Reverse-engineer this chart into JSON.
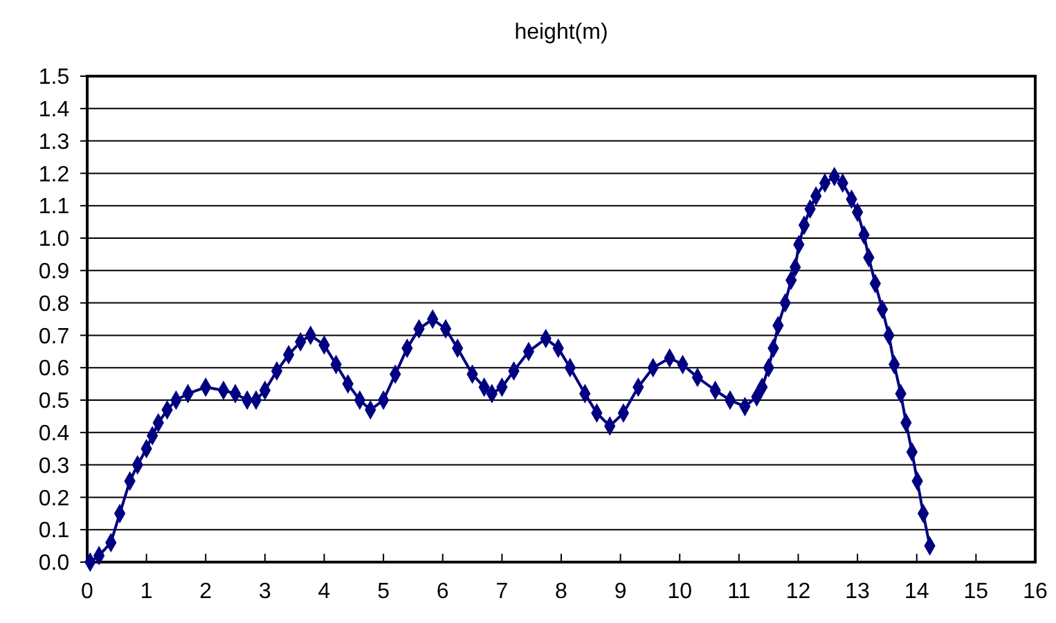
{
  "chart_data": {
    "type": "line",
    "title": "height(m)",
    "xlim": [
      0,
      16
    ],
    "xticks": [
      0,
      1,
      2,
      3,
      4,
      5,
      6,
      7,
      8,
      9,
      10,
      11,
      12,
      13,
      14,
      15,
      16
    ],
    "ylim": [
      0,
      1.5
    ],
    "yticks": [
      {
        "value": 0,
        "label": "0.0"
      },
      {
        "value": 0.1,
        "label": "0.1"
      },
      {
        "value": 0.2,
        "label": "0.2"
      },
      {
        "value": 0.3,
        "label": "0.3"
      },
      {
        "value": 0.4,
        "label": "0.4"
      },
      {
        "value": 0.5,
        "label": "0.5"
      },
      {
        "value": 0.6,
        "label": "0.6"
      },
      {
        "value": 0.7,
        "label": "0.7"
      },
      {
        "value": 0.8,
        "label": "0.8"
      },
      {
        "value": 0.9,
        "label": "0.9"
      },
      {
        "value": 1.0,
        "label": "1.0"
      },
      {
        "value": 1.1,
        "label": "1.1"
      },
      {
        "value": 1.2,
        "label": "1.2"
      },
      {
        "value": 1.3,
        "label": "1.3"
      },
      {
        "value": 1.4,
        "label": "1.4"
      },
      {
        "value": 1.5,
        "label": "1.5"
      }
    ],
    "grid": "y",
    "marker": "diamond",
    "line_style": "solid",
    "x": [
      0.05,
      0.2,
      0.4,
      0.55,
      0.72,
      0.85,
      1.0,
      1.1,
      1.2,
      1.35,
      1.5,
      1.7,
      2.0,
      2.3,
      2.5,
      2.7,
      2.85,
      3.0,
      3.2,
      3.4,
      3.6,
      3.77,
      4.0,
      4.2,
      4.4,
      4.6,
      4.78,
      5.0,
      5.2,
      5.4,
      5.6,
      5.83,
      6.05,
      6.25,
      6.5,
      6.7,
      6.83,
      7.0,
      7.2,
      7.45,
      7.74,
      7.95,
      8.15,
      8.4,
      8.6,
      8.82,
      9.05,
      9.3,
      9.55,
      9.83,
      10.05,
      10.3,
      10.6,
      10.85,
      11.1,
      11.3,
      11.39,
      11.5,
      11.58,
      11.66,
      11.78,
      11.88,
      11.95,
      12.01,
      12.1,
      12.2,
      12.3,
      12.45,
      12.61,
      12.75,
      12.9,
      13.0,
      13.11,
      13.19,
      13.3,
      13.42,
      13.53,
      13.62,
      13.73,
      13.82,
      13.92,
      14.01,
      14.11,
      14.22
    ],
    "series": [
      {
        "color": "#000080",
        "values": [
          0.0,
          0.02,
          0.06,
          0.15,
          0.25,
          0.3,
          0.35,
          0.39,
          0.43,
          0.47,
          0.5,
          0.52,
          0.54,
          0.53,
          0.52,
          0.5,
          0.5,
          0.53,
          0.59,
          0.64,
          0.68,
          0.7,
          0.67,
          0.61,
          0.55,
          0.5,
          0.47,
          0.5,
          0.58,
          0.66,
          0.72,
          0.75,
          0.72,
          0.66,
          0.58,
          0.54,
          0.52,
          0.54,
          0.59,
          0.65,
          0.69,
          0.66,
          0.6,
          0.52,
          0.46,
          0.42,
          0.46,
          0.54,
          0.6,
          0.63,
          0.61,
          0.57,
          0.53,
          0.5,
          0.48,
          0.51,
          0.54,
          0.6,
          0.66,
          0.73,
          0.8,
          0.87,
          0.91,
          0.98,
          1.04,
          1.09,
          1.13,
          1.17,
          1.19,
          1.17,
          1.12,
          1.08,
          1.01,
          0.94,
          0.86,
          0.78,
          0.7,
          0.61,
          0.52,
          0.43,
          0.34,
          0.25,
          0.15,
          0.05
        ]
      }
    ]
  }
}
